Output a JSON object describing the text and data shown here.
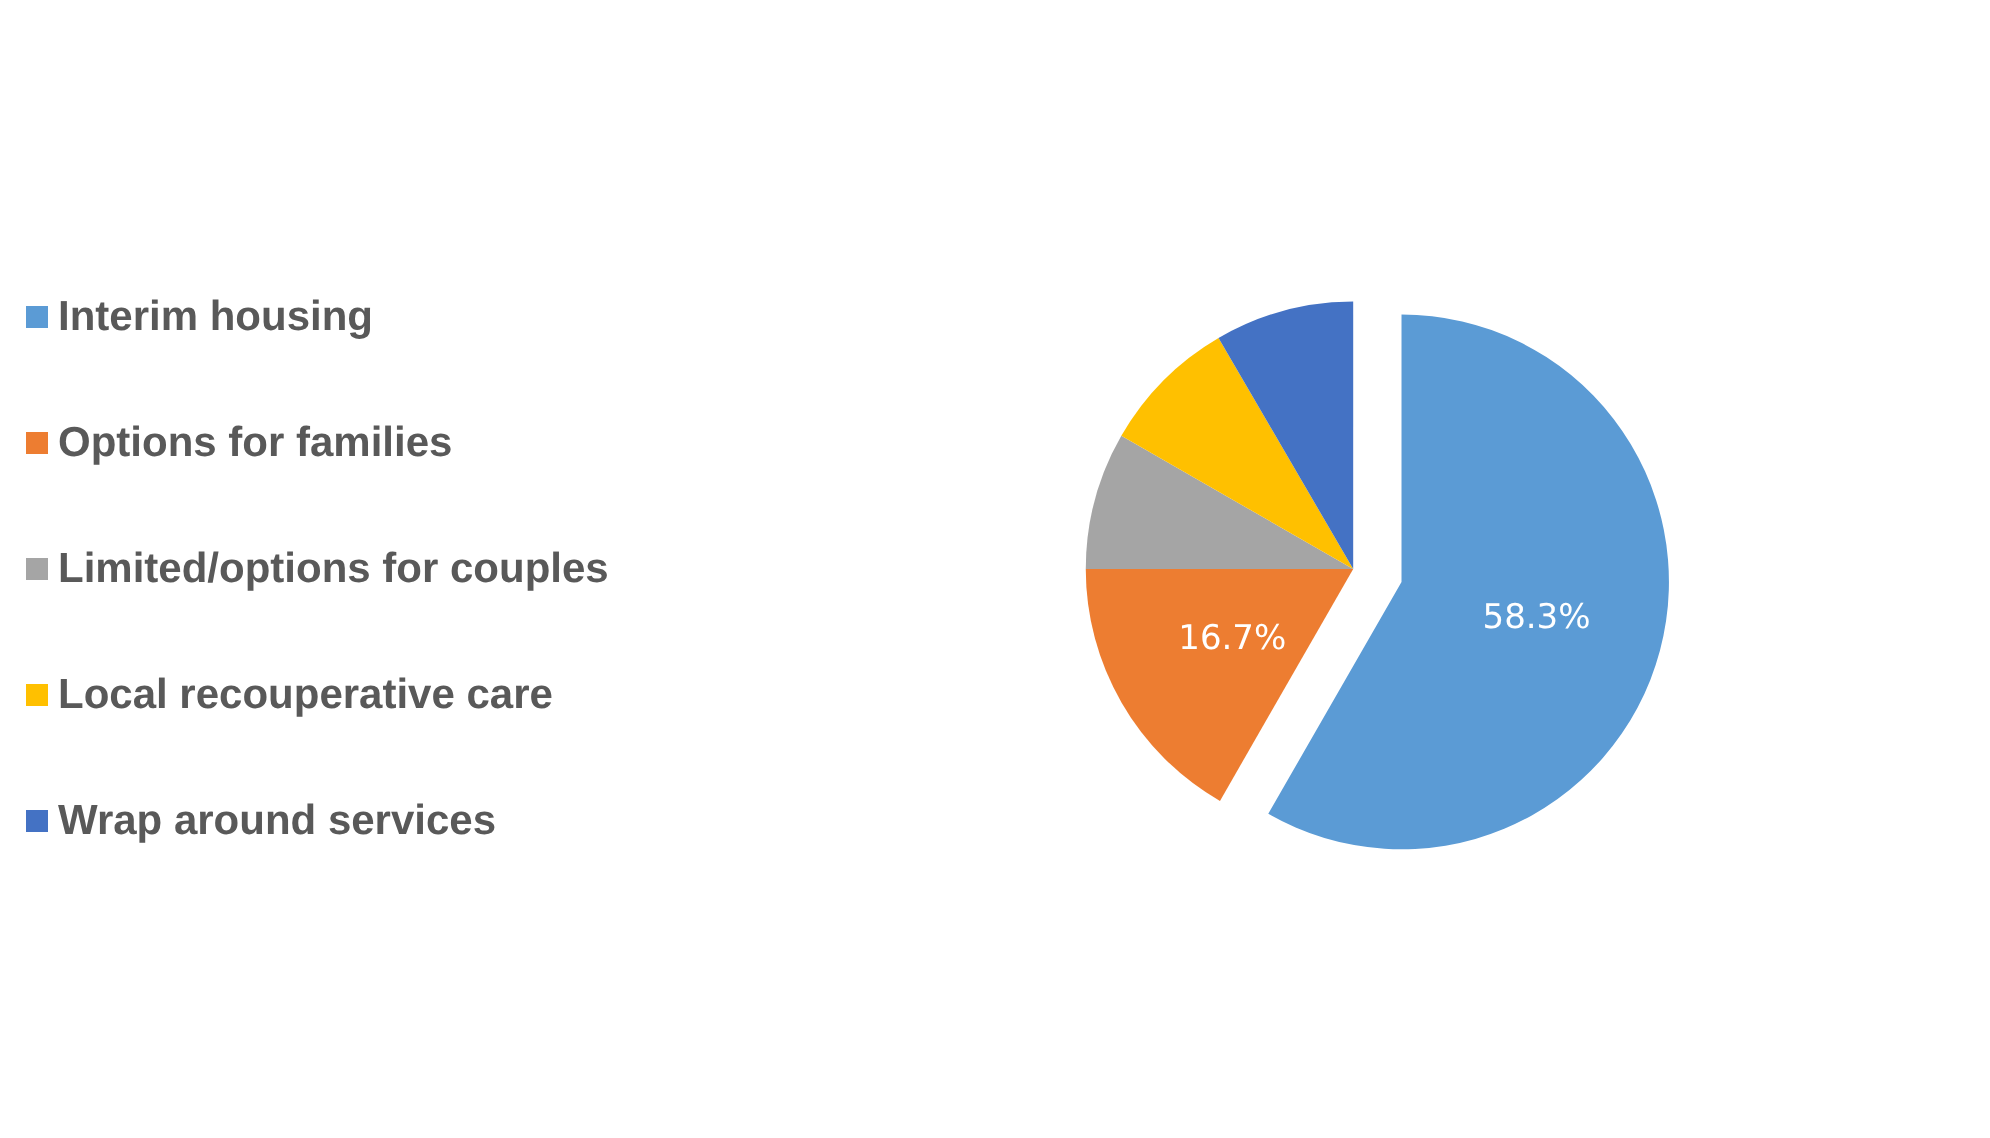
{
  "chart_data": {
    "type": "pie",
    "categories": [
      "Interim housing",
      "Options for families",
      "Limited/options for couples",
      "Local recouperative care",
      "Wrap around services"
    ],
    "values": [
      58.3,
      16.7,
      8.3,
      8.3,
      8.4
    ],
    "colors": [
      "#5b9bd5",
      "#ed7d31",
      "#a5a5a5",
      "#ffc000",
      "#4472c4"
    ],
    "value_labels": [
      "58.3%",
      "16.7%",
      null,
      null,
      null
    ],
    "legend": "left"
  }
}
